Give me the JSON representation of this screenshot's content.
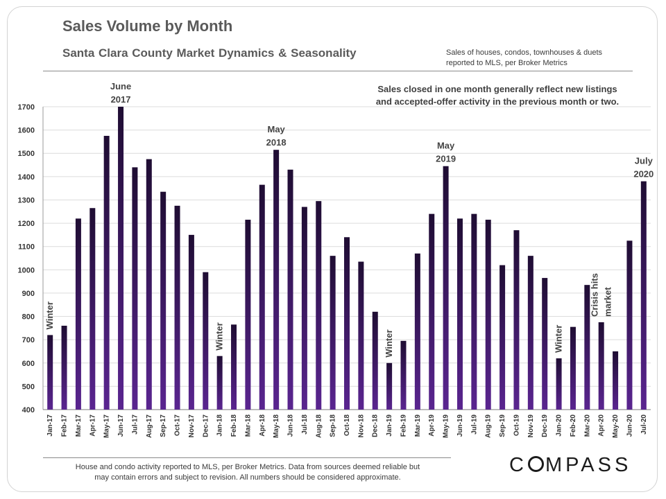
{
  "header": {
    "title": "Sales Volume by Month",
    "subtitle": "Santa Clara County Market Dynamics & Seasonality",
    "source_line1": "Sales of houses, condos, townhouses & duets",
    "source_line2": "reported to MLS, per Broker Metrics"
  },
  "note": {
    "line1": "Sales closed in one month generally reflect new listings",
    "line2": "and accepted-offer activity in the previous month or two."
  },
  "footer": {
    "line1": "House and condo activity reported to MLS, per Broker Metrics. Data from sources deemed reliable but",
    "line2": "may contain errors and subject to revision. All numbers should be considered approximate."
  },
  "logo": {
    "before": "C",
    "after": "MPASS"
  },
  "colors": {
    "bar_top": "#1f0d33",
    "bar_bottom": "#5a2590",
    "grid": "#dcdcdc"
  },
  "chart_data": {
    "type": "bar",
    "title": "Sales Volume by Month",
    "subtitle": "Santa Clara County Market Dynamics & Seasonality",
    "ylim": [
      400,
      1700
    ],
    "yticks": [
      400,
      500,
      600,
      700,
      800,
      900,
      1000,
      1100,
      1200,
      1300,
      1400,
      1500,
      1600,
      1700
    ],
    "grid": true,
    "categories": [
      "Jan-17",
      "Feb-17",
      "Mar-17",
      "Apr-17",
      "May-17",
      "Jun-17",
      "Jul-17",
      "Aug-17",
      "Sep-17",
      "Oct-17",
      "Nov-17",
      "Dec-17",
      "Jan-18",
      "Feb-18",
      "Mar-18",
      "Apr-18",
      "May-18",
      "Jun-18",
      "Jul-18",
      "Aug-18",
      "Sep-18",
      "Oct-18",
      "Nov-18",
      "Dec-18",
      "Jan-19",
      "Feb-19",
      "Mar-19",
      "Apr-19",
      "May-19",
      "Jun-19",
      "Jul-19",
      "Aug-19",
      "Sep-19",
      "Oct-19",
      "Nov-19",
      "Dec-19",
      "Jan-20",
      "Feb-20",
      "Mar-20",
      "Apr-20",
      "May-20",
      "Jun-20",
      "Jul-20"
    ],
    "values": [
      720,
      760,
      1220,
      1265,
      1575,
      1700,
      1440,
      1475,
      1335,
      1275,
      1150,
      990,
      630,
      765,
      1215,
      1365,
      1515,
      1430,
      1270,
      1295,
      1060,
      1140,
      1035,
      820,
      600,
      695,
      1070,
      1240,
      1445,
      1220,
      1240,
      1215,
      1020,
      1170,
      1060,
      965,
      620,
      755,
      935,
      775,
      650,
      1125,
      1380
    ],
    "annotations": [
      {
        "index": 5,
        "lines": [
          "June",
          "2017"
        ],
        "orientation": "horizontal"
      },
      {
        "index": 16,
        "lines": [
          "May",
          "2018"
        ],
        "orientation": "horizontal"
      },
      {
        "index": 28,
        "lines": [
          "May",
          "2019"
        ],
        "orientation": "horizontal"
      },
      {
        "index": 42,
        "lines": [
          "July",
          "2020"
        ],
        "orientation": "horizontal"
      },
      {
        "index": 0,
        "lines": [
          "Winter"
        ],
        "orientation": "vertical"
      },
      {
        "index": 12,
        "lines": [
          "Winter"
        ],
        "orientation": "vertical"
      },
      {
        "index": 24,
        "lines": [
          "Winter"
        ],
        "orientation": "vertical"
      },
      {
        "index": 36,
        "lines": [
          "Winter"
        ],
        "orientation": "vertical"
      },
      {
        "index": 39,
        "lines": [
          "Crisis hits",
          "market"
        ],
        "orientation": "vertical"
      }
    ]
  }
}
